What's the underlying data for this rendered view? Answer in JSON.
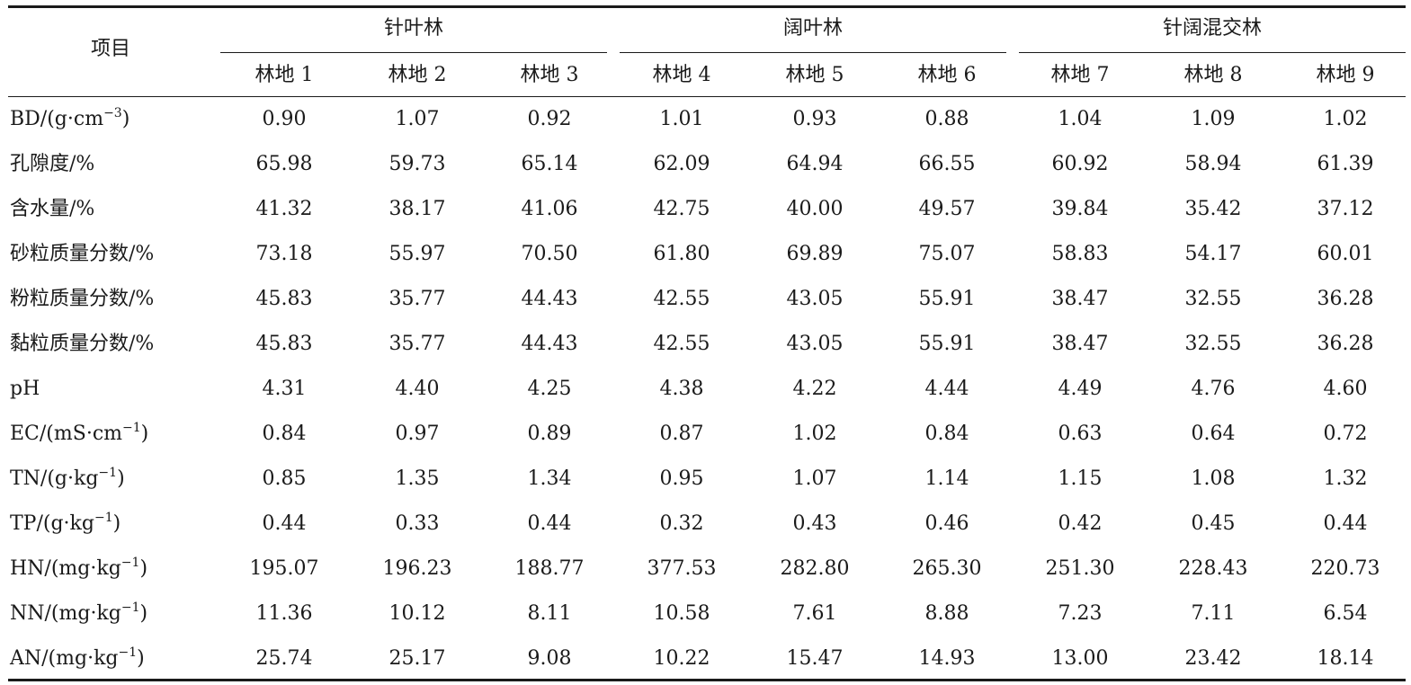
{
  "header": {
    "item_label": "项目",
    "groups": [
      "针叶林",
      "阔叶林",
      "针阔混交林"
    ],
    "sites": [
      "林地 1",
      "林地 2",
      "林地 3",
      "林地 4",
      "林地 5",
      "林地 6",
      "林地 7",
      "林地 8",
      "林地 9"
    ]
  },
  "rows": [
    {
      "label": "BD/(g·cm",
      "sup": "−3",
      "tail": ")",
      "values": [
        "0.90",
        "1.07",
        "0.92",
        "1.01",
        "0.93",
        "0.88",
        "1.04",
        "1.09",
        "1.02"
      ]
    },
    {
      "label": "孔隙度/%",
      "values": [
        "65.98",
        "59.73",
        "65.14",
        "62.09",
        "64.94",
        "66.55",
        "60.92",
        "58.94",
        "61.39"
      ]
    },
    {
      "label": "含水量/%",
      "values": [
        "41.32",
        "38.17",
        "41.06",
        "42.75",
        "40.00",
        "49.57",
        "39.84",
        "35.42",
        "37.12"
      ]
    },
    {
      "label": "砂粒质量分数/%",
      "values": [
        "73.18",
        "55.97",
        "70.50",
        "61.80",
        "69.89",
        "75.07",
        "58.83",
        "54.17",
        "60.01"
      ]
    },
    {
      "label": "粉粒质量分数/%",
      "values": [
        "45.83",
        "35.77",
        "44.43",
        "42.55",
        "43.05",
        "55.91",
        "38.47",
        "32.55",
        "36.28"
      ]
    },
    {
      "label": "黏粒质量分数/%",
      "values": [
        "45.83",
        "35.77",
        "44.43",
        "42.55",
        "43.05",
        "55.91",
        "38.47",
        "32.55",
        "36.28"
      ]
    },
    {
      "label": "pH",
      "values": [
        "4.31",
        "4.40",
        "4.25",
        "4.38",
        "4.22",
        "4.44",
        "4.49",
        "4.76",
        "4.60"
      ]
    },
    {
      "label": "EC/(mS·cm",
      "sup": "−1",
      "tail": ")",
      "values": [
        "0.84",
        "0.97",
        "0.89",
        "0.87",
        "1.02",
        "0.84",
        "0.63",
        "0.64",
        "0.72"
      ]
    },
    {
      "label": "TN/(g·kg",
      "sup": "−1",
      "tail": ")",
      "values": [
        "0.85",
        "1.35",
        "1.34",
        "0.95",
        "1.07",
        "1.14",
        "1.15",
        "1.08",
        "1.32"
      ]
    },
    {
      "label": "TP/(g·kg",
      "sup": "−1",
      "tail": ")",
      "values": [
        "0.44",
        "0.33",
        "0.44",
        "0.32",
        "0.43",
        "0.46",
        "0.42",
        "0.45",
        "0.44"
      ]
    },
    {
      "label": "HN/(mg·kg",
      "sup": "−1",
      "tail": ")",
      "values": [
        "195.07",
        "196.23",
        "188.77",
        "377.53",
        "282.80",
        "265.30",
        "251.30",
        "228.43",
        "220.73"
      ]
    },
    {
      "label": "NN/(mg·kg",
      "sup": "−1",
      "tail": ")",
      "values": [
        "11.36",
        "10.12",
        "8.11",
        "10.58",
        "7.61",
        "8.88",
        "7.23",
        "7.11",
        "6.54"
      ]
    },
    {
      "label": "AN/(mg·kg",
      "sup": "−1",
      "tail": ")",
      "values": [
        "25.74",
        "25.17",
        "9.08",
        "10.22",
        "15.47",
        "14.93",
        "13.00",
        "23.42",
        "18.14"
      ]
    }
  ]
}
